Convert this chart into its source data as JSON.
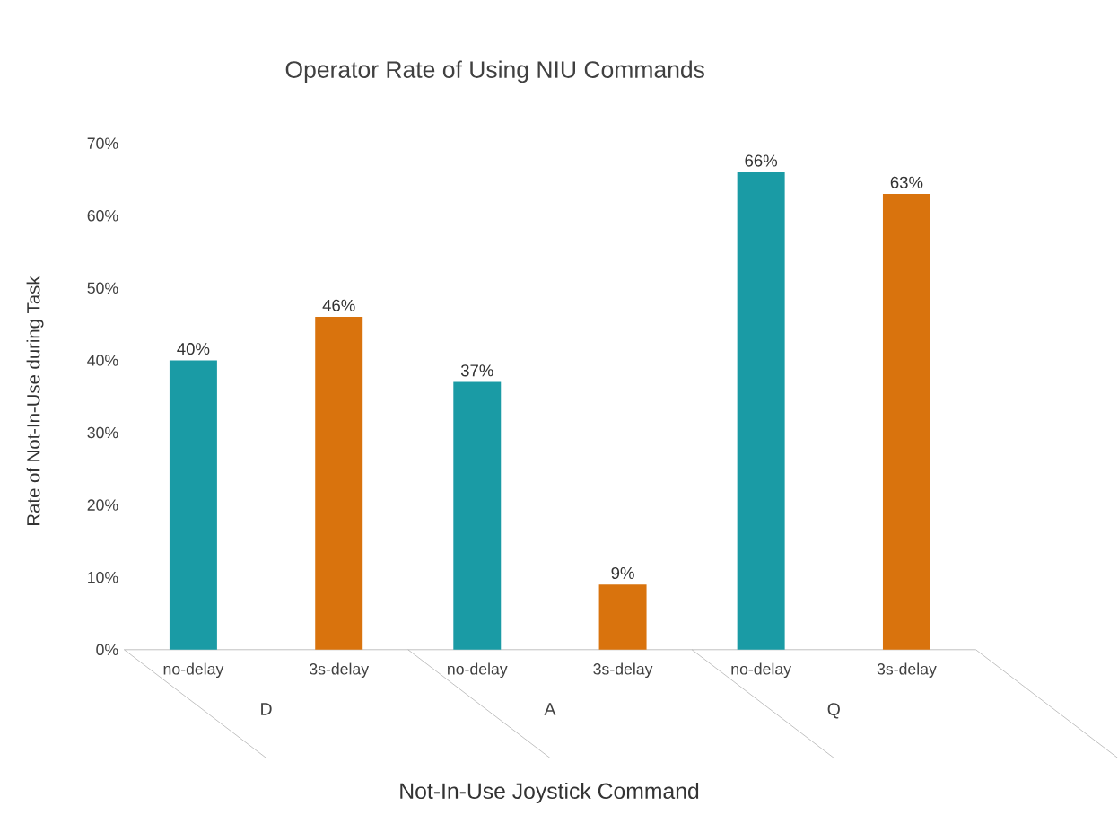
{
  "chart_data": {
    "type": "bar",
    "title": "Operator Rate of Using NIU Commands",
    "xlabel": "Not-In-Use Joystick Command",
    "ylabel": "Rate of  Not-In-Use during Task",
    "categories": [
      "D",
      "A",
      "Q"
    ],
    "series": [
      {
        "name": "no-delay",
        "color": "#1a9ba5",
        "values": [
          40,
          37,
          66
        ],
        "value_labels": [
          "40%",
          "37%",
          "66%"
        ]
      },
      {
        "name": "3s-delay",
        "color": "#d9730d",
        "values": [
          46,
          9,
          63
        ],
        "value_labels": [
          "46%",
          "9%",
          "63%"
        ]
      }
    ],
    "ylim": [
      0,
      70
    ],
    "yticks": [
      {
        "value": 0,
        "label": "0%"
      },
      {
        "value": 10,
        "label": "10%"
      },
      {
        "value": 20,
        "label": "20%"
      },
      {
        "value": 30,
        "label": "30%"
      },
      {
        "value": 40,
        "label": "40%"
      },
      {
        "value": 50,
        "label": "50%"
      },
      {
        "value": 60,
        "label": "60%"
      },
      {
        "value": 70,
        "label": "70%"
      }
    ]
  }
}
